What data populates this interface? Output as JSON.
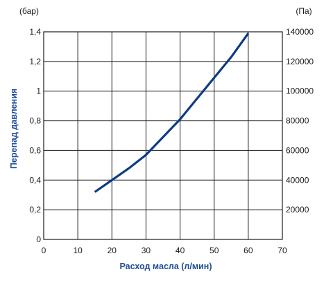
{
  "chart_data": {
    "type": "line",
    "title": "",
    "xlabel": "Расход масла (л/мин)",
    "ylabel": "Перепад давления",
    "y_unit_left": "(бар)",
    "y_unit_right": "(Па)",
    "xlim": [
      0,
      70
    ],
    "ylim": [
      0,
      1.4
    ],
    "y2lim": [
      0,
      140000
    ],
    "x_ticks": [
      "0",
      "10",
      "20",
      "30",
      "40",
      "50",
      "60",
      "70"
    ],
    "y_ticks": [
      "0",
      "0,2",
      "0,4",
      "0,6",
      "0,8",
      "1",
      "1,2",
      "1,4"
    ],
    "y2_ticks": [
      "20000",
      "40000",
      "60000",
      "80000",
      "100000",
      "120000",
      "140000"
    ],
    "grid": true,
    "line_color": "#0d3b85",
    "label_color": "#1f4e96",
    "series": [
      {
        "x": [
          15,
          20,
          25,
          30,
          35,
          40,
          45,
          50,
          55,
          60
        ],
        "y": [
          0.32,
          0.4,
          0.48,
          0.57,
          0.69,
          0.81,
          0.95,
          1.09,
          1.23,
          1.39
        ]
      }
    ]
  }
}
